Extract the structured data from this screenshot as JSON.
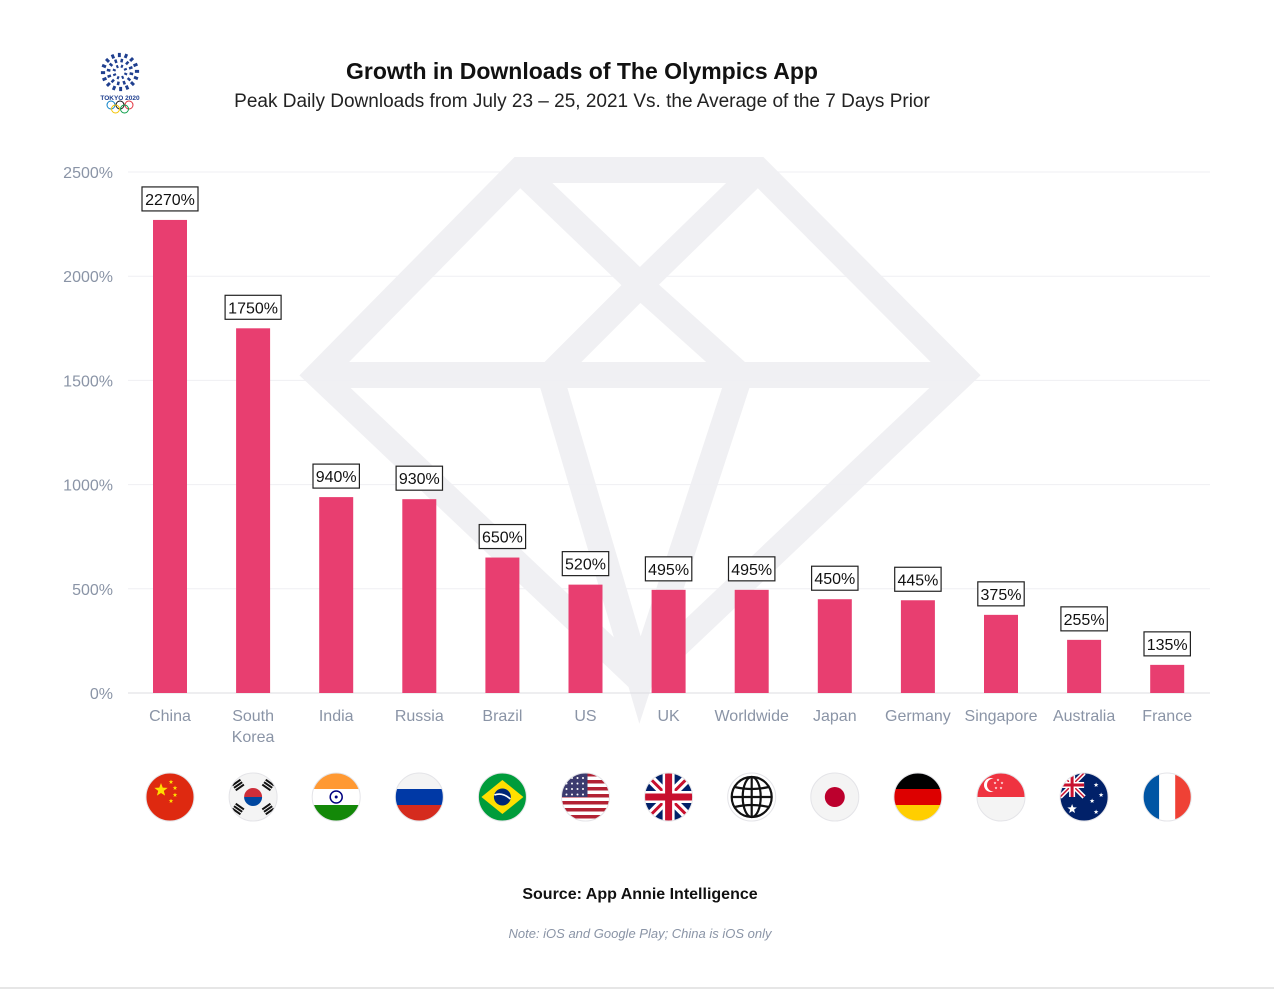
{
  "logo": {
    "text": "TOKYO 2020",
    "emblem_color": "#1f3f8f",
    "ring_colors": [
      "#0a81c8",
      "#111111",
      "#e2333e",
      "#f4c300",
      "#0a9e49"
    ]
  },
  "header": {
    "title": "Growth in Downloads of The Olympics App",
    "subtitle": "Peak Daily Downloads from July 23 – 25, 2021 Vs. the Average of the 7 Days Prior"
  },
  "footer": {
    "source": "Source: App Annie Intelligence",
    "note": "Note: iOS and Google Play; China is iOS only"
  },
  "colors": {
    "bar": "#e83e70",
    "axis_text": "#8a94a6",
    "grid": "#efeff3",
    "watermark": "#f2f2f4"
  },
  "chart_data": {
    "type": "bar",
    "title": "Growth in Downloads of The Olympics App",
    "subtitle": "Peak Daily Downloads from July 23 – 25, 2021 Vs. the Average of the 7 Days Prior",
    "categories": [
      "China",
      "South Korea",
      "India",
      "Russia",
      "Brazil",
      "US",
      "UK",
      "Worldwide",
      "Japan",
      "Germany",
      "Singapore",
      "Australia",
      "France"
    ],
    "category_lines": [
      [
        "China"
      ],
      [
        "South",
        "Korea"
      ],
      [
        "India"
      ],
      [
        "Russia"
      ],
      [
        "Brazil"
      ],
      [
        "US"
      ],
      [
        "UK"
      ],
      [
        "Worldwide"
      ],
      [
        "Japan"
      ],
      [
        "Germany"
      ],
      [
        "Singapore"
      ],
      [
        "Australia"
      ],
      [
        "France"
      ]
    ],
    "values": [
      2270,
      1750,
      940,
      930,
      650,
      520,
      495,
      495,
      450,
      445,
      375,
      255,
      135
    ],
    "data_labels": [
      "2270%",
      "1750%",
      "940%",
      "930%",
      "650%",
      "520%",
      "495%",
      "495%",
      "450%",
      "445%",
      "375%",
      "255%",
      "135%"
    ],
    "yticks": [
      0,
      500,
      1000,
      1500,
      2000,
      2500
    ],
    "ytick_labels": [
      "0%",
      "500%",
      "1000%",
      "1500%",
      "2000%",
      "2500%"
    ],
    "ylim": [
      0,
      2500
    ],
    "xlabel": "",
    "ylabel": "",
    "grid": true,
    "legend": "none",
    "flag_icons": [
      "china-flag-icon",
      "south-korea-flag-icon",
      "india-flag-icon",
      "russia-flag-icon",
      "brazil-flag-icon",
      "us-flag-icon",
      "uk-flag-icon",
      "globe-icon",
      "japan-flag-icon",
      "germany-flag-icon",
      "singapore-flag-icon",
      "australia-flag-icon",
      "france-flag-icon"
    ]
  }
}
